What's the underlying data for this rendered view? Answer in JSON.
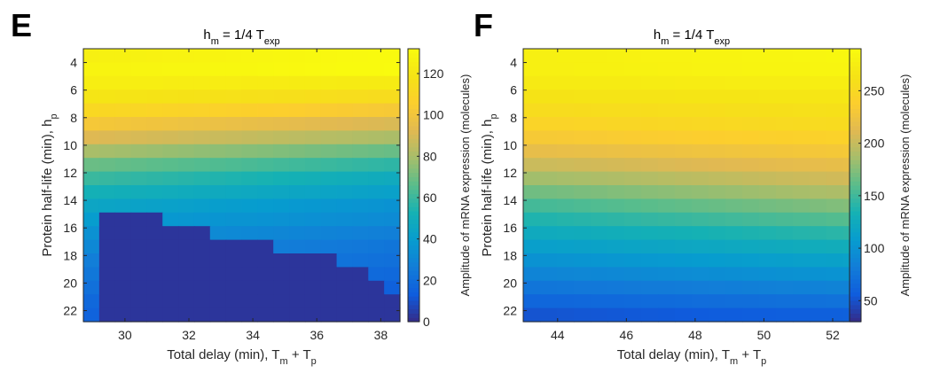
{
  "panels": [
    {
      "letter": "E",
      "chart_data": {
        "type": "heatmap",
        "title": "h_m = 1/4 T_exp",
        "title_parts": {
          "base": "h",
          "base_sub": "m",
          "mid": " = 1/4 T",
          "end_sub": "exp"
        },
        "xlabel": "Total delay (min), T_m + T_p",
        "xlabel_parts": {
          "a": "Total delay (min), T",
          "a_sub": "m",
          "b": " + T",
          "b_sub": "p"
        },
        "ylabel": "Protein half-life (min), h_p",
        "ylabel_parts": {
          "a": "Protein half-life (min), h",
          "a_sub": "p"
        },
        "colorbar_label": "Amplitude of mRNA expression (molecules)",
        "x_range": [
          28.7,
          38.6
        ],
        "y_range": [
          3.0,
          22.8
        ],
        "x_ticks": [
          30,
          32,
          34,
          36,
          38
        ],
        "y_ticks": [
          4,
          6,
          8,
          10,
          12,
          14,
          16,
          18,
          20,
          22
        ],
        "color_range": [
          0,
          132
        ],
        "color_ticks": [
          0,
          20,
          40,
          60,
          80,
          100,
          120
        ],
        "grid_cols": 20,
        "grid_rows": 20,
        "row_values_at_left": [
          126,
          128,
          125,
          120,
          112,
          102,
          92,
          80,
          69,
          60,
          52,
          45,
          40,
          35,
          31,
          27,
          24,
          21,
          18,
          16
        ],
        "row_slope_per_col": [
          0.3,
          0.2,
          -0.1,
          -0.3,
          -0.5,
          -0.6,
          -0.6,
          -0.6,
          -0.6,
          -0.6,
          -0.5,
          -0.5,
          -0.4,
          -0.4,
          -0.4,
          -0.3,
          -0.3,
          -0.3,
          -0.3,
          -0.2
        ],
        "cutoff_x": [
          28.7,
          29.0,
          31.0,
          32.5,
          34.5,
          36.5,
          37.5,
          38.2
        ],
        "cutoff_y": [
          22.8,
          14.5,
          15.5,
          16.5,
          17.5,
          18.5,
          19.5,
          20.5
        ],
        "cutoff_value": 3
      }
    },
    {
      "letter": "F",
      "chart_data": {
        "type": "heatmap",
        "title": "h_m = 1/4 T_exp",
        "title_parts": {
          "base": "h",
          "base_sub": "m",
          "mid": " = 1/4 T",
          "end_sub": "exp"
        },
        "xlabel": "Total delay (min), T_m + T_p",
        "xlabel_parts": {
          "a": "Total delay (min), T",
          "a_sub": "m",
          "b": " + T",
          "b_sub": "p"
        },
        "ylabel": "Protein half-life (min), h_p",
        "ylabel_parts": {
          "a": "Protein half-life (min), h",
          "a_sub": "p"
        },
        "colorbar_label": "Amplitude of mRNA expression (molecules)",
        "x_range": [
          43.0,
          52.8
        ],
        "y_range": [
          3.0,
          22.8
        ],
        "x_ticks": [
          44,
          46,
          48,
          50,
          52
        ],
        "y_ticks": [
          4,
          6,
          8,
          10,
          12,
          14,
          16,
          18,
          20,
          22
        ],
        "color_range": [
          30,
          290
        ],
        "color_ticks": [
          50,
          100,
          150,
          200,
          250
        ],
        "grid_cols": 20,
        "grid_rows": 20,
        "row_values_at_left": [
          278,
          278,
          272,
          264,
          255,
          245,
          232,
          218,
          202,
          185,
          168,
          152,
          138,
          124,
          112,
          100,
          88,
          76,
          64,
          52
        ],
        "row_slope_per_col": [
          0.4,
          0.3,
          0.2,
          0.2,
          0.3,
          0.5,
          0.6,
          0.7,
          0.9,
          1.1,
          1.2,
          1.2,
          1.1,
          1.0,
          0.9,
          0.8,
          0.7,
          0.6,
          0.5,
          0.4
        ],
        "cutoff_x": [],
        "cutoff_y": [],
        "cutoff_value": null
      }
    }
  ]
}
